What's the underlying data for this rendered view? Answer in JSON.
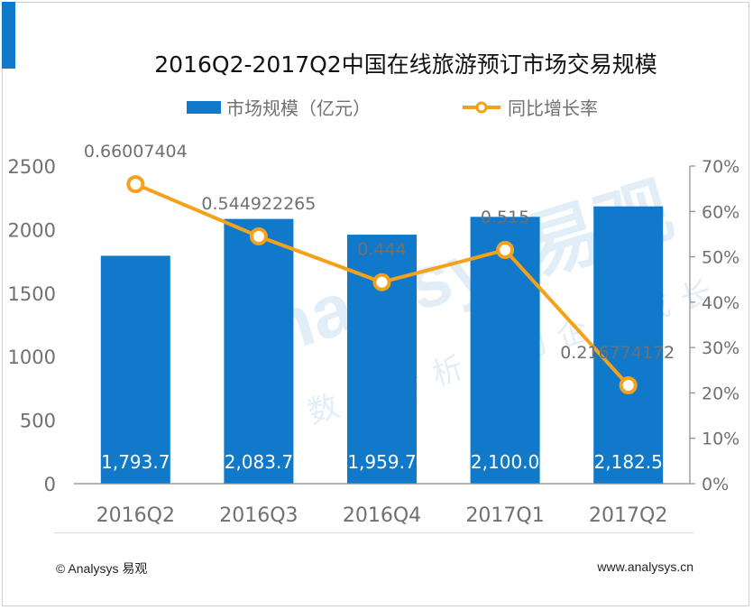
{
  "source": {
    "left": "© Analysys 易观",
    "right": "www.analysys.cn"
  },
  "watermark": {
    "main": "Analysys易观",
    "sub": "数据分析驱动企业成长"
  },
  "colors": {
    "bar": "#1079c9",
    "line": "#f5a21b",
    "axis_text": "#707070",
    "title": "#111111",
    "value_label": "#ffffff",
    "rate_label": "#707070"
  },
  "chart_data": {
    "type": "bar",
    "title": "2016Q2-2017Q2中国在线旅游预订市场交易规模",
    "categories": [
      "2016Q2",
      "2016Q3",
      "2016Q4",
      "2017Q1",
      "2017Q2"
    ],
    "series": [
      {
        "name": "市场规模（亿元）",
        "type": "bar",
        "axis": "left",
        "values": [
          1793.7,
          2083.7,
          1959.7,
          2100.0,
          2182.5
        ],
        "labels": [
          "1,793.7",
          "2,083.7",
          "1,959.7",
          "2,100.0",
          "2,182.5"
        ]
      },
      {
        "name": "同比增长率",
        "type": "line",
        "axis": "right",
        "values": [
          0.66007404,
          0.544922265,
          0.444,
          0.515,
          0.216774172
        ],
        "labels": [
          "0.66007404",
          "0.544922265",
          "0.444",
          "0.515",
          "0.216774172"
        ]
      }
    ],
    "y_left": {
      "min": 0,
      "max": 2500,
      "ticks": [
        0,
        500,
        1000,
        1500,
        2000,
        2500
      ],
      "tick_labels": [
        "0",
        "500",
        "1000",
        "1500",
        "2000",
        "2500"
      ]
    },
    "y_right": {
      "min": 0,
      "max": 0.7,
      "ticks": [
        0,
        0.1,
        0.2,
        0.3,
        0.4,
        0.5,
        0.6,
        0.7
      ],
      "tick_labels": [
        "0%",
        "10%",
        "20%",
        "30%",
        "40%",
        "50%",
        "60%",
        "70%"
      ]
    },
    "legend_position": "top-center",
    "grid": false
  }
}
